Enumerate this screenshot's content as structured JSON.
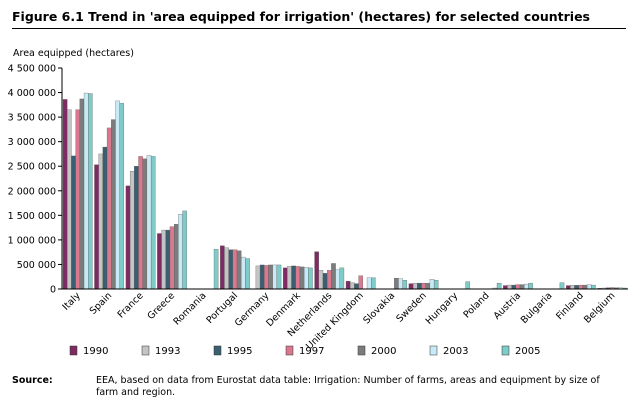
{
  "figure": {
    "title": "Figure 6.1  Trend in 'area equipped for irrigation' (hectares) for selected countries",
    "source_label": "Source:",
    "source_text": "EEA, based on data from Eurostat data table: Irrigation: Number of farms, areas and equipment by size of farm and region."
  },
  "colors": {
    "1990": "#7e2b63",
    "1993": "#c4c4c4",
    "1995": "#3a5f70",
    "1997": "#d9788e",
    "2000": "#7c7c7c",
    "2003": "#c8e9f5",
    "2005": "#7fcbc8"
  },
  "chart_data": {
    "type": "bar",
    "title": "Figure 6.1  Trend in 'area equipped for irrigation' (hectares) for selected countries",
    "ylabel": "Area equipped (hectares)",
    "xlabel": "",
    "ylim": [
      0,
      4500000
    ],
    "yticks": [
      0,
      500000,
      1000000,
      1500000,
      2000000,
      2500000,
      3000000,
      3500000,
      4000000,
      4500000
    ],
    "ytick_labels": [
      "0",
      "500 000",
      "1 000 000",
      "1 500 000",
      "2 000 000",
      "2 500 000",
      "3 000 000",
      "3 500 000",
      "4 000 000",
      "4 500 000"
    ],
    "grid": false,
    "legend_position": "bottom",
    "categories": [
      "Italy",
      "Spain",
      "France",
      "Greece",
      "Romania",
      "Portugal",
      "Germany",
      "Denmark",
      "Netherlands",
      "United Kingdom",
      "Slovakia",
      "Sweden",
      "Hungary",
      "Poland",
      "Austria",
      "Bulgaria",
      "Finland",
      "Belgium"
    ],
    "series": [
      {
        "name": "1990",
        "values": [
          3860000,
          2530000,
          2100000,
          1130000,
          null,
          880000,
          null,
          430000,
          760000,
          160000,
          null,
          110000,
          null,
          null,
          70000,
          null,
          70000,
          15000
        ]
      },
      {
        "name": "1993",
        "values": [
          3650000,
          2750000,
          2400000,
          1200000,
          null,
          840000,
          470000,
          460000,
          380000,
          130000,
          null,
          120000,
          null,
          null,
          80000,
          null,
          75000,
          20000
        ]
      },
      {
        "name": "1995",
        "values": [
          2710000,
          2890000,
          2500000,
          1200000,
          null,
          800000,
          490000,
          470000,
          320000,
          110000,
          null,
          120000,
          null,
          null,
          80000,
          null,
          75000,
          25000
        ]
      },
      {
        "name": "1997",
        "values": [
          3650000,
          3280000,
          2700000,
          1270000,
          null,
          800000,
          480000,
          460000,
          380000,
          270000,
          null,
          120000,
          null,
          null,
          90000,
          null,
          80000,
          30000
        ]
      },
      {
        "name": "2000",
        "values": [
          3870000,
          3450000,
          2650000,
          1320000,
          null,
          780000,
          490000,
          450000,
          520000,
          null,
          220000,
          120000,
          null,
          null,
          90000,
          null,
          80000,
          25000
        ]
      },
      {
        "name": "2003",
        "values": [
          3990000,
          3830000,
          2720000,
          1520000,
          null,
          650000,
          490000,
          440000,
          390000,
          230000,
          210000,
          200000,
          null,
          20000,
          100000,
          null,
          90000,
          25000
        ]
      },
      {
        "name": "2005",
        "values": [
          3980000,
          3780000,
          2700000,
          1590000,
          810000,
          620000,
          490000,
          430000,
          430000,
          230000,
          180000,
          180000,
          150000,
          120000,
          120000,
          130000,
          80000,
          20000
        ]
      }
    ]
  }
}
